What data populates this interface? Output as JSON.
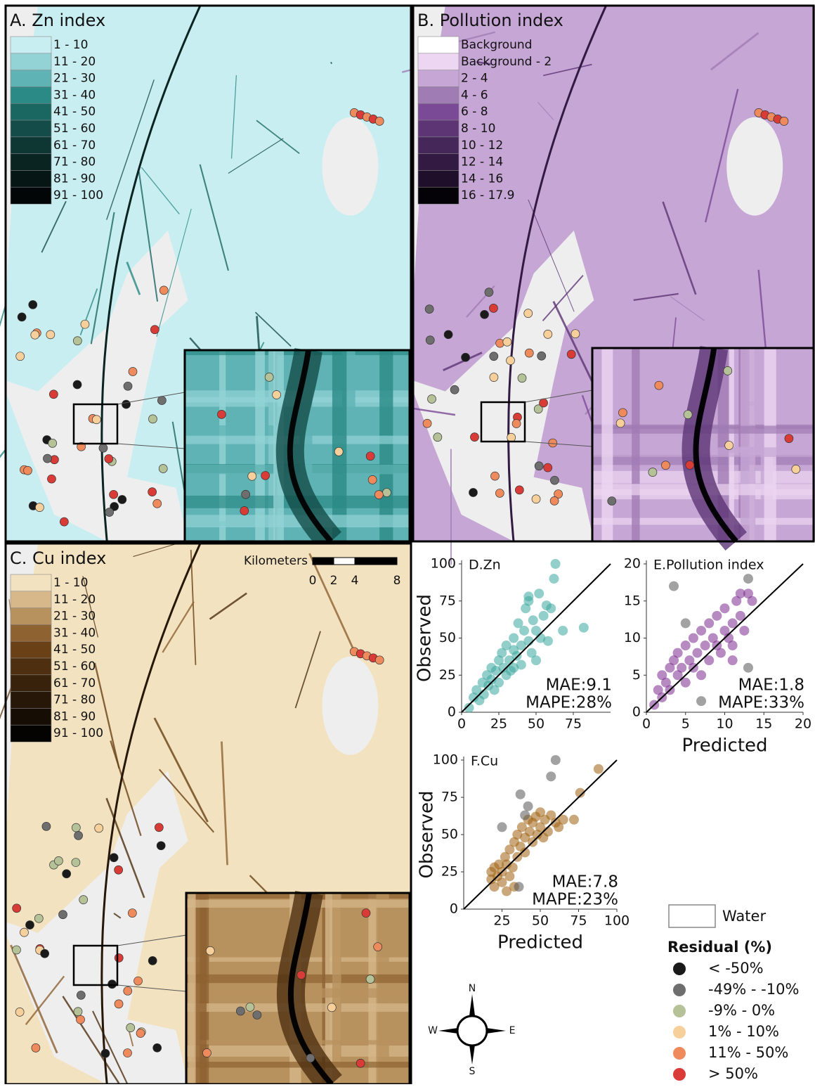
{
  "maps": [
    {
      "title": "A. Zn index",
      "legend": [
        {
          "label": "1 - 10",
          "color": "#c9eef1"
        },
        {
          "label": "11 - 20",
          "color": "#93d3d6"
        },
        {
          "label": "21 - 30",
          "color": "#5fb3b4"
        },
        {
          "label": "31 - 40",
          "color": "#2b8a85"
        },
        {
          "label": "41 - 50",
          "color": "#1a6761"
        },
        {
          "label": "51 - 60",
          "color": "#134c48"
        },
        {
          "label": "61 - 70",
          "color": "#0e3633"
        },
        {
          "label": "71 - 80",
          "color": "#0a2422"
        },
        {
          "label": "81 - 90",
          "color": "#061614"
        },
        {
          "label": "91 - 100",
          "color": "#020606"
        }
      ]
    },
    {
      "title": "B. Pollution index",
      "legend": [
        {
          "label": "Background",
          "color": "#ffffff"
        },
        {
          "label": "Background - 2",
          "color": "#ecd6f1"
        },
        {
          "label": "2 - 4",
          "color": "#c6a6d4"
        },
        {
          "label": "4 - 6",
          "color": "#a07cb4"
        },
        {
          "label": "6 - 8",
          "color": "#7b4a96"
        },
        {
          "label": "8 - 10",
          "color": "#5d3575"
        },
        {
          "label": "10 - 12",
          "color": "#46275a"
        },
        {
          "label": "12 - 14",
          "color": "#321a42"
        },
        {
          "label": "14 - 16",
          "color": "#1f0f2a"
        },
        {
          "label": "16 - 17.9",
          "color": "#050207"
        }
      ]
    },
    {
      "title": "C. Cu index",
      "legend": [
        {
          "label": "1 - 10",
          "color": "#f3e2bf"
        },
        {
          "label": "11 - 20",
          "color": "#d6b88a"
        },
        {
          "label": "21 - 30",
          "color": "#b8925e"
        },
        {
          "label": "31 - 40",
          "color": "#8f6232"
        },
        {
          "label": "41 - 50",
          "color": "#6a4116"
        },
        {
          "label": "51 - 60",
          "color": "#4e3010"
        },
        {
          "label": "61 - 70",
          "color": "#38220c"
        },
        {
          "label": "71 - 80",
          "color": "#261708"
        },
        {
          "label": "81 - 90",
          "color": "#160d04"
        },
        {
          "label": "91 - 100",
          "color": "#050301"
        }
      ]
    }
  ],
  "scale_bar": {
    "title": "Kilometers",
    "ticks": [
      0,
      2,
      4,
      8
    ]
  },
  "water_legend": "Water",
  "residual_legend": {
    "title": "Residual (%)",
    "items": [
      {
        "label": "< -50%",
        "color": "#1a1a1a"
      },
      {
        "label": "-49% - -10%",
        "color": "#6e6e6e"
      },
      {
        "label": "-9% - 0%",
        "color": "#b5c197"
      },
      {
        "label": "1% - 10%",
        "color": "#f7cf9a"
      },
      {
        "label": "11% - 50%",
        "color": "#ee8a5c"
      },
      {
        "label": "> 50%",
        "color": "#d93b36"
      }
    ]
  },
  "compass": {
    "n": "N",
    "s": "S",
    "e": "E",
    "w": "W"
  },
  "chart_data": [
    {
      "type": "scatter",
      "title": "D.Zn",
      "ylabel": "Observed",
      "xlim": [
        0,
        100
      ],
      "ylim": [
        0,
        100
      ],
      "xticks": [
        0,
        25,
        50,
        75
      ],
      "yticks": [
        0,
        25,
        50,
        75,
        100
      ],
      "annotations": [
        "MAE:9.1",
        "MAPE:28%"
      ],
      "series": [
        {
          "color": "#3aa89e",
          "x": [
            5,
            8,
            10,
            12,
            14,
            15,
            17,
            18,
            20,
            20,
            22,
            23,
            25,
            25,
            27,
            28,
            30,
            30,
            32,
            33,
            35,
            35,
            37,
            38,
            40,
            40,
            42,
            43,
            45,
            45,
            47,
            48,
            50,
            50,
            52,
            53,
            55,
            57,
            58,
            60,
            62,
            63,
            68,
            82,
            45,
            35
          ],
          "values": [
            3,
            10,
            15,
            8,
            20,
            12,
            25,
            18,
            22,
            30,
            15,
            28,
            35,
            20,
            40,
            30,
            25,
            45,
            35,
            28,
            42,
            50,
            38,
            60,
            45,
            32,
            55,
            70,
            48,
            75,
            40,
            62,
            55,
            35,
            80,
            50,
            65,
            72,
            48,
            70,
            90,
            100,
            55,
            57,
            78,
            30
          ]
        }
      ]
    },
    {
      "type": "scatter",
      "title": "E.Pollution index",
      "xlabel": "Predicted",
      "xlim": [
        0,
        20
      ],
      "ylim": [
        0,
        20
      ],
      "xticks": [
        0,
        5,
        10,
        15,
        20
      ],
      "yticks": [
        0,
        5,
        10,
        15,
        20
      ],
      "annotations": [
        "MAE:1.8",
        "MAPE:33%"
      ],
      "series": [
        {
          "color": "#7b2a8f",
          "x": [
            1,
            1.5,
            2,
            2,
            2.5,
            3,
            3,
            3.5,
            4,
            4,
            4.5,
            5,
            5,
            5.5,
            6,
            6,
            6.5,
            7,
            7,
            7.5,
            8,
            8,
            8.5,
            9,
            9,
            9.5,
            10,
            10,
            10.5,
            11,
            11,
            11.5,
            12,
            12,
            12.5,
            13,
            13.5,
            11
          ],
          "values": [
            1,
            3,
            2,
            5,
            4,
            6,
            3,
            7,
            5,
            8,
            6,
            9,
            4,
            7,
            10,
            6,
            8,
            11,
            5,
            9,
            12,
            7,
            10,
            9,
            13,
            8,
            11,
            14,
            10,
            12,
            9,
            15,
            13,
            16,
            11,
            16,
            15,
            7
          ]
        },
        {
          "color": "#555555",
          "x": [
            3.5,
            13,
            5,
            13,
            7
          ],
          "values": [
            17,
            18,
            12,
            6,
            1.5
          ]
        }
      ]
    },
    {
      "type": "scatter",
      "title": "F.Cu",
      "xlabel": "Predicted",
      "ylabel": "Observed",
      "xlim": [
        0,
        100
      ],
      "ylim": [
        0,
        100
      ],
      "xticks": [
        25,
        50,
        75,
        100
      ],
      "yticks": [
        0,
        25,
        50,
        75,
        100
      ],
      "annotations": [
        "MAE:7.8",
        "MAPE:23%"
      ],
      "series": [
        {
          "color": "#a0600f",
          "x": [
            18,
            18,
            20,
            20,
            22,
            23,
            25,
            25,
            27,
            28,
            30,
            30,
            32,
            33,
            35,
            35,
            37,
            38,
            40,
            40,
            42,
            43,
            45,
            45,
            47,
            48,
            50,
            50,
            52,
            53,
            55,
            57,
            60,
            62,
            65,
            72,
            76,
            88,
            28,
            33
          ],
          "values": [
            20,
            25,
            15,
            28,
            22,
            30,
            25,
            18,
            35,
            30,
            22,
            40,
            28,
            45,
            35,
            50,
            42,
            55,
            48,
            38,
            60,
            52,
            45,
            58,
            62,
            50,
            55,
            65,
            48,
            60,
            52,
            63,
            58,
            55,
            60,
            60,
            78,
            94,
            12,
            15
          ]
        },
        {
          "color": "#555555",
          "x": [
            60,
            57,
            37,
            42,
            40,
            25,
            36
          ],
          "values": [
            100,
            89,
            77,
            69,
            63,
            55,
            15
          ]
        }
      ]
    }
  ]
}
